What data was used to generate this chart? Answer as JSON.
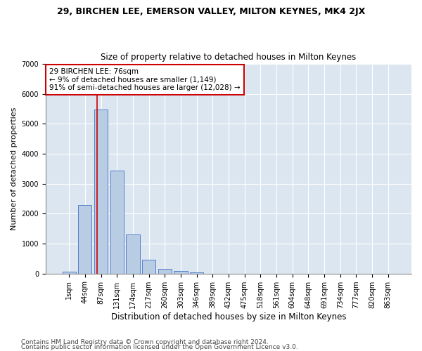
{
  "title1": "29, BIRCHEN LEE, EMERSON VALLEY, MILTON KEYNES, MK4 2JX",
  "title2": "Size of property relative to detached houses in Milton Keynes",
  "xlabel": "Distribution of detached houses by size in Milton Keynes",
  "ylabel": "Number of detached properties",
  "categories": [
    "1sqm",
    "44sqm",
    "87sqm",
    "131sqm",
    "174sqm",
    "217sqm",
    "260sqm",
    "303sqm",
    "346sqm",
    "389sqm",
    "432sqm",
    "475sqm",
    "518sqm",
    "561sqm",
    "604sqm",
    "648sqm",
    "691sqm",
    "734sqm",
    "777sqm",
    "820sqm",
    "863sqm"
  ],
  "values": [
    75,
    2280,
    5470,
    3450,
    1310,
    470,
    155,
    85,
    50,
    0,
    0,
    0,
    0,
    0,
    0,
    0,
    0,
    0,
    0,
    0,
    0
  ],
  "bar_color": "#b8cce4",
  "bar_edge_color": "#4472c4",
  "vline_color": "#cc0000",
  "vline_pos": 1.75,
  "annotation_text": "29 BIRCHEN LEE: 76sqm\n← 9% of detached houses are smaller (1,149)\n91% of semi-detached houses are larger (12,028) →",
  "annotation_box_color": "#ffffff",
  "annotation_box_edge": "#cc0000",
  "ylim": [
    0,
    7000
  ],
  "yticks": [
    0,
    1000,
    2000,
    3000,
    4000,
    5000,
    6000,
    7000
  ],
  "footer1": "Contains HM Land Registry data © Crown copyright and database right 2024.",
  "footer2": "Contains public sector information licensed under the Open Government Licence v3.0.",
  "fig_bg_color": "#ffffff",
  "plot_bg_color": "#dce6f1",
  "title1_fontsize": 9,
  "title2_fontsize": 8.5,
  "xlabel_fontsize": 8.5,
  "ylabel_fontsize": 8,
  "tick_fontsize": 7,
  "annotation_fontsize": 7.5,
  "footer_fontsize": 6.5
}
